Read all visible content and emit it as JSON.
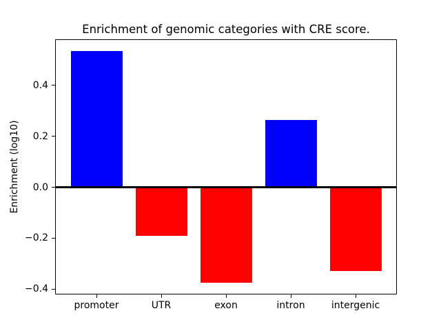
{
  "chart_data": {
    "type": "bar",
    "title": "Enrichment of genomic categories with CRE score.",
    "ylabel": "Enrichment (log10)",
    "xlabel": "",
    "categories": [
      "promoter",
      "UTR",
      "exon",
      "intron",
      "intergenic"
    ],
    "values": [
      0.535,
      -0.19,
      -0.375,
      0.265,
      -0.33
    ],
    "colors": [
      "#0000ff",
      "#ff0000",
      "#ff0000",
      "#0000ff",
      "#ff0000"
    ],
    "positive_color": "#0000ff",
    "negative_color": "#ff0000",
    "ylim": [
      -0.42,
      0.58
    ],
    "yticks": [
      -0.4,
      -0.2,
      0.0,
      0.2,
      0.4
    ],
    "ytick_labels": [
      "−0.4",
      "−0.2",
      "0.0",
      "0.2",
      "0.4"
    ],
    "zero_line": true,
    "grid": false,
    "legend": null,
    "axis_color": "#000000",
    "background": "#ffffff"
  }
}
